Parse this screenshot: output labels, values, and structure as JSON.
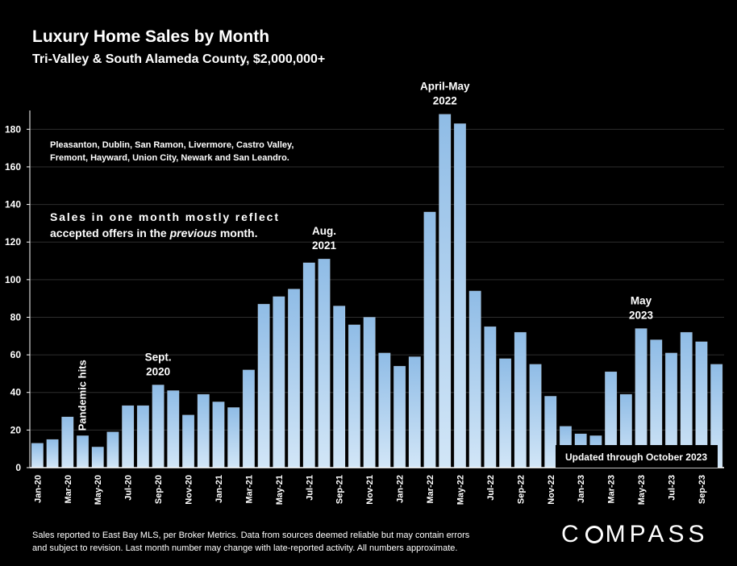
{
  "header": {
    "title": "Luxury Home Sales by Month",
    "subtitle": "Tri-Valley & South Alameda County, $2,000,000+"
  },
  "footnote": {
    "line1": "Sales reported to East Bay MLS, per Broker Metrics. Data from sources deemed reliable but may contain errors",
    "line2": "and subject to revision. Last month number may change with late-reported activity. All numbers approximate."
  },
  "logo": {
    "text": "COMPASS"
  },
  "colors": {
    "bar_dark": "#8fbce6",
    "bar_light": "#d2e6f7",
    "axis": "#ffffff",
    "grid": "#2e2e2e",
    "background": "#000000"
  },
  "chart_data": {
    "type": "bar",
    "title": "Luxury Home Sales by Month",
    "subtitle": "Tri-Valley & South Alameda County, $2,000,000+",
    "xlabel": "",
    "ylabel": "",
    "ylim": [
      0,
      190
    ],
    "yticks": [
      0,
      20,
      40,
      60,
      80,
      100,
      120,
      140,
      160,
      180
    ],
    "grid": true,
    "categories": [
      "Jan-20",
      "Feb-20",
      "Mar-20",
      "Apr-20",
      "May-20",
      "Jun-20",
      "Jul-20",
      "Aug-20",
      "Sep-20",
      "Oct-20",
      "Nov-20",
      "Dec-20",
      "Jan-21",
      "Feb-21",
      "Mar-21",
      "Apr-21",
      "May-21",
      "Jun-21",
      "Jul-21",
      "Aug-21",
      "Sep-21",
      "Oct-21",
      "Nov-21",
      "Dec-21",
      "Jan-22",
      "Feb-22",
      "Mar-22",
      "Apr-22",
      "May-22",
      "Jun-22",
      "Jul-22",
      "Aug-22",
      "Sep-22",
      "Oct-22",
      "Nov-22",
      "Dec-22",
      "Jan-23",
      "Feb-23",
      "Mar-23",
      "Apr-23",
      "May-23",
      "Jun-23",
      "Jul-23",
      "Aug-23",
      "Sep-23",
      "Oct-23"
    ],
    "tick_labels": [
      "Jan-20",
      "Mar-20",
      "May-20",
      "Jul-20",
      "Sep-20",
      "Nov-20",
      "Jan-21",
      "Mar-21",
      "May-21",
      "Jul-21",
      "Sep-21",
      "Nov-21",
      "Jan-22",
      "Mar-22",
      "May-22",
      "Jul-22",
      "Sep-22",
      "Nov-22",
      "Jan-23",
      "Mar-23",
      "May-23",
      "Jul-23",
      "Sep-23"
    ],
    "values": [
      13,
      15,
      27,
      17,
      11,
      19,
      33,
      33,
      44,
      41,
      28,
      39,
      35,
      32,
      52,
      87,
      91,
      95,
      109,
      111,
      86,
      76,
      80,
      61,
      54,
      59,
      136,
      188,
      183,
      94,
      75,
      58,
      72,
      55,
      38,
      22,
      18,
      17,
      51,
      39,
      74,
      68,
      61,
      72,
      67,
      55
    ],
    "annotations": [
      {
        "index": 3,
        "text": "Pandemic hits",
        "rotated": true
      },
      {
        "index": 8,
        "lines": [
          "Sept.",
          "2020"
        ]
      },
      {
        "index": 19,
        "lines": [
          "Aug.",
          "2021"
        ]
      },
      {
        "index": 27,
        "lines": [
          "April-May",
          "2022"
        ]
      },
      {
        "index": 40,
        "lines": [
          "May",
          "2023"
        ]
      }
    ],
    "notes": {
      "cities_line1": "Pleasanton, Dublin, San Ramon, Livermore, Castro Valley,",
      "cities_line2": "Fremont, Hayward, Union City, Newark and San Leandro.",
      "offers_line1": "Sales in one month mostly reflect",
      "offers_line2_pre": "accepted offers in the ",
      "offers_line2_em": "previous",
      "offers_line2_post": " month.",
      "updated": "Updated through October 2023"
    }
  }
}
